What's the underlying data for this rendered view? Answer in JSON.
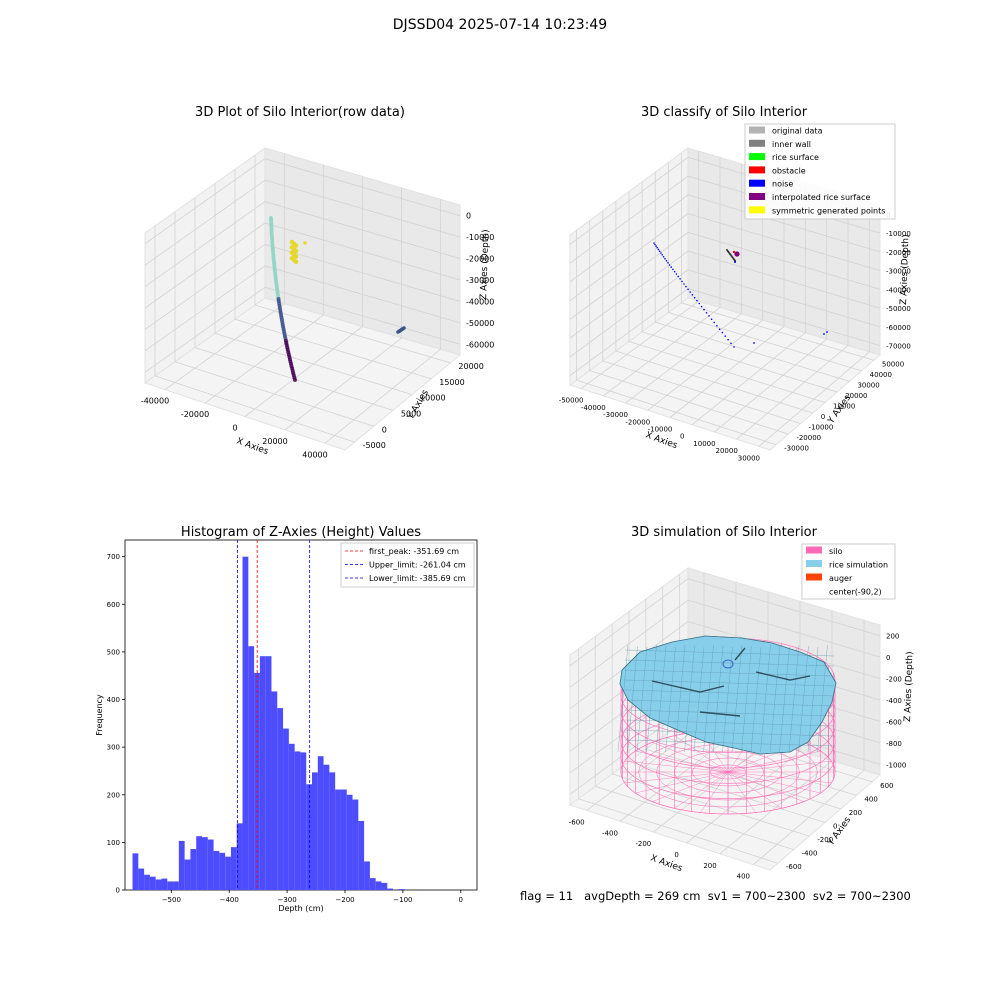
{
  "figure": {
    "suptitle": "DJSSD04 2025-07-14 10:23:49",
    "footer": "flag = 11   avgDepth = 269 cm  sv1 = 700~2300  sv2 = 700~2300"
  },
  "chart_data": [
    {
      "type": "scatter3d",
      "title": "3D Plot of Silo Interior(row data)",
      "xlabel": "X Axies",
      "ylabel": "Y Axies",
      "zlabel": "Z Axies (Depth)",
      "xticks": [
        "-40000",
        "-20000",
        "0",
        "20000",
        "40000"
      ],
      "yticks": [
        "-5000",
        "0",
        "5000",
        "10000",
        "15000",
        "20000"
      ],
      "zticks": [
        "0",
        "-10000",
        "-20000",
        "-30000",
        "-40000",
        "-50000",
        "-60000"
      ],
      "grid": true,
      "colors": {
        "low": "#440154",
        "mid": "#3b528b",
        "high": "#8fd3c2",
        "yellow": "#e6d82c"
      }
    },
    {
      "type": "scatter3d",
      "title": "3D classify of Silo Interior",
      "xticks": [
        "-50000",
        "-40000",
        "-30000",
        "-20000",
        "-10000",
        "0",
        "10000",
        "20000",
        "30000"
      ],
      "yticks": [
        "-30000",
        "-20000",
        "-10000",
        "0",
        "10000",
        "20000",
        "30000",
        "40000",
        "50000"
      ],
      "zticks": [
        "0",
        "-10000",
        "-20000",
        "-30000",
        "-40000",
        "-50000",
        "-60000",
        "-70000"
      ],
      "xlabel": "X Axies",
      "ylabel": "Y Axies",
      "zlabel": "Z Axies (Depth)",
      "legend_position": "top-right",
      "legend": [
        {
          "label": "original data",
          "color": "#b3b3b3"
        },
        {
          "label": "inner wall",
          "color": "#808080"
        },
        {
          "label": "rice surface",
          "color": "#00ff00"
        },
        {
          "label": "obstacle",
          "color": "#ff0000"
        },
        {
          "label": "noise",
          "color": "#0000ff"
        },
        {
          "label": "interpolated rice surface",
          "color": "#800080"
        },
        {
          "label": "symmetric generated points",
          "color": "#ffff00"
        }
      ]
    },
    {
      "type": "bar",
      "title": "Histogram of Z-Axies (Height) Values",
      "xlabel": "Depth (cm)",
      "ylabel": "Frequency",
      "xlim": [
        -580,
        28
      ],
      "ylim": [
        0,
        735
      ],
      "xticks": [
        -500,
        -400,
        -300,
        -200,
        -100,
        0
      ],
      "yticks": [
        0,
        100,
        200,
        300,
        400,
        500,
        600,
        700
      ],
      "bar_color": "#4d4dff",
      "bin_edges": [
        -567,
        -557,
        -547,
        -537,
        -527,
        -517,
        -507,
        -497,
        -487,
        -477,
        -467,
        -457,
        -447,
        -437,
        -427,
        -417,
        -407,
        -397,
        -387,
        -377,
        -367,
        -357,
        -347,
        -337,
        -327,
        -317,
        -307,
        -297,
        -287,
        -277,
        -267,
        -257,
        -247,
        -237,
        -227,
        -217,
        -207,
        -197,
        -187,
        -177,
        -167,
        -157,
        -147,
        -137,
        -127,
        -117,
        -107,
        -97,
        -87,
        -77,
        -67,
        -57,
        -47,
        -37,
        -27,
        -17,
        -7,
        3
      ],
      "values": [
        77,
        45,
        32,
        28,
        22,
        24,
        18,
        18,
        103,
        64,
        86,
        113,
        111,
        106,
        82,
        78,
        70,
        90,
        140,
        700,
        512,
        456,
        491,
        491,
        417,
        382,
        339,
        307,
        291,
        289,
        222,
        247,
        281,
        263,
        247,
        211,
        211,
        200,
        190,
        145,
        60,
        25,
        18,
        15,
        3,
        0,
        2,
        0,
        0,
        0,
        0,
        0,
        0,
        0,
        0,
        0,
        0
      ],
      "vlines": [
        {
          "label": "first_peak: -351.69 cm",
          "x": -351.69,
          "color": "#ff0000"
        },
        {
          "label": "Upper_limit: -261.04 cm",
          "x": -261.04,
          "color": "#0000ff"
        },
        {
          "label": "Lower_limit: -385.69 cm",
          "x": -385.69,
          "color": "#0000ff"
        }
      ],
      "legend_position": "top-right"
    },
    {
      "type": "surface3d",
      "title": "3D simulation of Silo Interior",
      "xlabel": "X Axies",
      "ylabel": "Y Axies",
      "zlabel": "Z Axies (Depth)",
      "xticks": [
        "-600",
        "-400",
        "-200",
        "0",
        "200",
        "400"
      ],
      "yticks": [
        "-600",
        "-400",
        "-200",
        "0",
        "200",
        "400",
        "600"
      ],
      "zticks": [
        "200",
        "0",
        "-200",
        "-400",
        "-600",
        "-800",
        "-1000"
      ],
      "legend_position": "top-right",
      "legend": [
        {
          "label": "silo",
          "color": "#ff69b4"
        },
        {
          "label": "rice simulation",
          "color": "#87ceeb"
        },
        {
          "label": "auger",
          "color": "#ff4500"
        },
        {
          "label": "center(-90,2)",
          "color": "none"
        }
      ]
    }
  ]
}
